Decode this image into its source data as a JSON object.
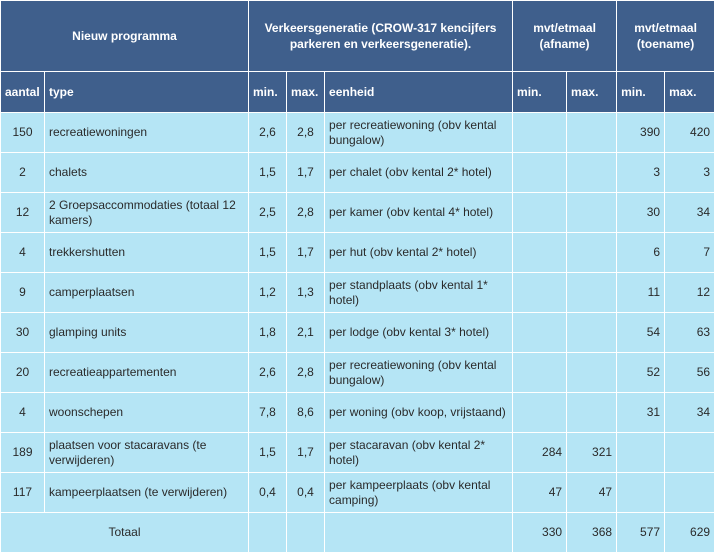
{
  "header": {
    "program": "Nieuw programma",
    "generation": "Verkeersgeneratie (CROW-317 kencijfers parkeren en verkeersgeneratie).",
    "afname": "mvt/etmaal (afname)",
    "toename": "mvt/etmaal (toename)"
  },
  "subheader": {
    "aantal": "aantal",
    "type": "type",
    "min": "min.",
    "max": "max.",
    "eenheid": "eenheid",
    "afname_min": "min.",
    "afname_max": "max.",
    "toename_min": "min.",
    "toename_max": "max."
  },
  "rows": [
    {
      "aantal": "150",
      "type": "recreatiewoningen",
      "min": "2,6",
      "max": "2,8",
      "eenheid": "per recreatiewoning (obv kental bungalow)",
      "af_min": "",
      "af_max": "",
      "toe_min": "390",
      "toe_max": "420"
    },
    {
      "aantal": "2",
      "type": "chalets",
      "min": "1,5",
      "max": "1,7",
      "eenheid": "per chalet (obv kental 2* hotel)",
      "af_min": "",
      "af_max": "",
      "toe_min": "3",
      "toe_max": "3"
    },
    {
      "aantal": "12",
      "type": "2 Groepsaccommodaties (totaal 12 kamers)",
      "min": "2,5",
      "max": "2,8",
      "eenheid": "per kamer (obv kental 4* hotel)",
      "af_min": "",
      "af_max": "",
      "toe_min": "30",
      "toe_max": "34"
    },
    {
      "aantal": "4",
      "type": "trekkershutten",
      "min": "1,5",
      "max": "1,7",
      "eenheid": "per hut (obv kental 2* hotel)",
      "af_min": "",
      "af_max": "",
      "toe_min": "6",
      "toe_max": "7"
    },
    {
      "aantal": "9",
      "type": "camperplaatsen",
      "min": "1,2",
      "max": "1,3",
      "eenheid": "per standplaats (obv kental 1* hotel)",
      "af_min": "",
      "af_max": "",
      "toe_min": "11",
      "toe_max": "12"
    },
    {
      "aantal": "30",
      "type": "glamping units",
      "min": "1,8",
      "max": "2,1",
      "eenheid": "per lodge (obv kental 3* hotel)",
      "af_min": "",
      "af_max": "",
      "toe_min": "54",
      "toe_max": "63"
    },
    {
      "aantal": "20",
      "type": "recreatieappartementen",
      "min": "2,6",
      "max": "2,8",
      "eenheid": "per recreatiewoning (obv kental bungalow)",
      "af_min": "",
      "af_max": "",
      "toe_min": "52",
      "toe_max": "56"
    },
    {
      "aantal": "4",
      "type": "woonschepen",
      "min": "7,8",
      "max": "8,6",
      "eenheid": "per woning (obv koop, vrijstaand)",
      "af_min": "",
      "af_max": "",
      "toe_min": "31",
      "toe_max": "34"
    },
    {
      "aantal": "189",
      "type": "plaatsen voor stacaravans (te verwijderen)",
      "min": "1,5",
      "max": "1,7",
      "eenheid": "per stacaravan (obv kental 2* hotel)",
      "af_min": "284",
      "af_max": "321",
      "toe_min": "",
      "toe_max": ""
    },
    {
      "aantal": "117",
      "type": "kampeerplaatsen (te verwijderen)",
      "min": "0,4",
      "max": "0,4",
      "eenheid": "per kampeerplaats (obv kental camping)",
      "af_min": "47",
      "af_max": "47",
      "toe_min": "",
      "toe_max": ""
    }
  ],
  "total": {
    "label": "Totaal",
    "af_min": "330",
    "af_max": "368",
    "toe_min": "577",
    "toe_max": "629"
  }
}
